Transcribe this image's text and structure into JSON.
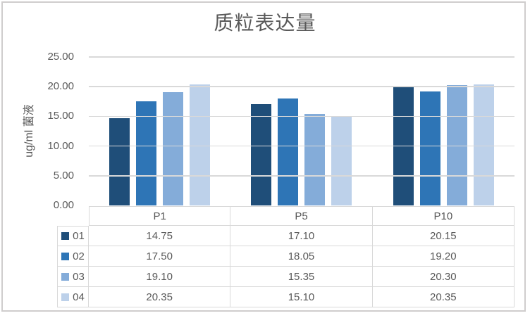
{
  "chart_data": {
    "type": "bar",
    "title": "质粒表达量",
    "xlabel": "",
    "ylabel": "ug/ml 菌液",
    "categories": [
      "P1",
      "P5",
      "P10"
    ],
    "series": [
      {
        "name": "01",
        "color": "#1F4E79",
        "values": [
          14.75,
          17.1,
          20.15
        ]
      },
      {
        "name": "02",
        "color": "#2E75B6",
        "values": [
          17.5,
          18.05,
          19.2
        ]
      },
      {
        "name": "03",
        "color": "#84ACD9",
        "values": [
          19.1,
          15.35,
          20.3
        ]
      },
      {
        "name": "04",
        "color": "#BDD1EA",
        "values": [
          20.35,
          15.1,
          20.35
        ]
      }
    ],
    "ylim": [
      0,
      25
    ],
    "ytick_step": 5,
    "ytick_labels": [
      "25.00",
      "20.00",
      "15.00",
      "10.00",
      "5.00",
      "0.00"
    ],
    "grid": true,
    "legend_position": "data-table-left",
    "value_format": "0.00"
  },
  "style": {
    "text_color": "#595959",
    "grid_color": "#D9D9D9",
    "table_border_color": "#D9D9D9",
    "frame_border_color": "#CFCDCD",
    "background_color": "#FFFFFF"
  }
}
